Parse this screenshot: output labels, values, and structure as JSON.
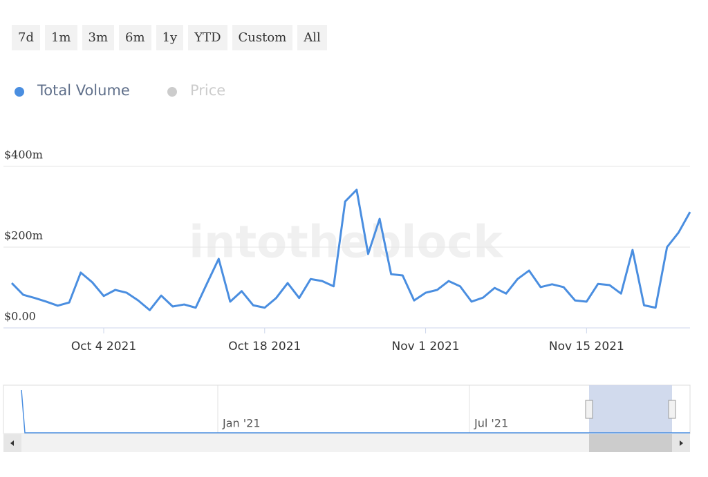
{
  "range_selector": {
    "buttons": [
      "7d",
      "1m",
      "3m",
      "6m",
      "1y",
      "YTD",
      "Custom",
      "All"
    ]
  },
  "watermark": "intotheblock",
  "chart_data": {
    "type": "line",
    "x": [
      "2021-09-26",
      "2021-09-27",
      "2021-09-28",
      "2021-09-29",
      "2021-09-30",
      "2021-10-01",
      "2021-10-02",
      "2021-10-03",
      "2021-10-04",
      "2021-10-05",
      "2021-10-06",
      "2021-10-07",
      "2021-10-08",
      "2021-10-09",
      "2021-10-10",
      "2021-10-11",
      "2021-10-12",
      "2021-10-13",
      "2021-10-14",
      "2021-10-15",
      "2021-10-16",
      "2021-10-17",
      "2021-10-18",
      "2021-10-19",
      "2021-10-20",
      "2021-10-21",
      "2021-10-22",
      "2021-10-23",
      "2021-10-24",
      "2021-10-25",
      "2021-10-26",
      "2021-10-27",
      "2021-10-28",
      "2021-10-29",
      "2021-10-30",
      "2021-10-31",
      "2021-11-01",
      "2021-11-02",
      "2021-11-03",
      "2021-11-04",
      "2021-11-05",
      "2021-11-06",
      "2021-11-07",
      "2021-11-08",
      "2021-11-09",
      "2021-11-10",
      "2021-11-11",
      "2021-11-12",
      "2021-11-13",
      "2021-11-14",
      "2021-11-15",
      "2021-11-16",
      "2021-11-17",
      "2021-11-18",
      "2021-11-19",
      "2021-11-20",
      "2021-11-21",
      "2021-11-22",
      "2021-11-23",
      "2021-11-24"
    ],
    "series": [
      {
        "name": "Total Volume",
        "color": "#4a8ee0",
        "values": [
          111,
          82,
          74,
          65,
          55,
          63,
          137,
          113,
          79,
          94,
          87,
          68,
          44,
          80,
          53,
          58,
          50,
          111,
          171,
          65,
          91,
          56,
          50,
          74,
          111,
          74,
          121,
          116,
          103,
          313,
          342,
          183,
          270,
          133,
          130,
          68,
          87,
          94,
          116,
          103,
          65,
          75,
          99,
          85,
          121,
          142,
          101,
          108,
          101,
          68,
          65,
          109,
          106,
          85,
          193,
          56,
          50,
          200,
          236,
          287
        ]
      },
      {
        "name": "Price",
        "color": "#cccccc",
        "visible": false
      }
    ],
    "xlim": [
      "2021-09-26",
      "2021-11-24"
    ],
    "xticks": [
      {
        "value": "2021-10-04",
        "label": "Oct 4 2021"
      },
      {
        "value": "2021-10-18",
        "label": "Oct 18 2021"
      },
      {
        "value": "2021-11-01",
        "label": "Nov 1 2021"
      },
      {
        "value": "2021-11-15",
        "label": "Nov 15 2021"
      }
    ],
    "ylim": [
      0,
      400
    ],
    "yticks": [
      {
        "value": 0,
        "label": "$0.00"
      },
      {
        "value": 200,
        "label": "$200m"
      },
      {
        "value": 400,
        "label": "$400m"
      }
    ],
    "grid": true
  },
  "navigator": {
    "labels": [
      "Jan '21",
      "Jul '21"
    ]
  }
}
